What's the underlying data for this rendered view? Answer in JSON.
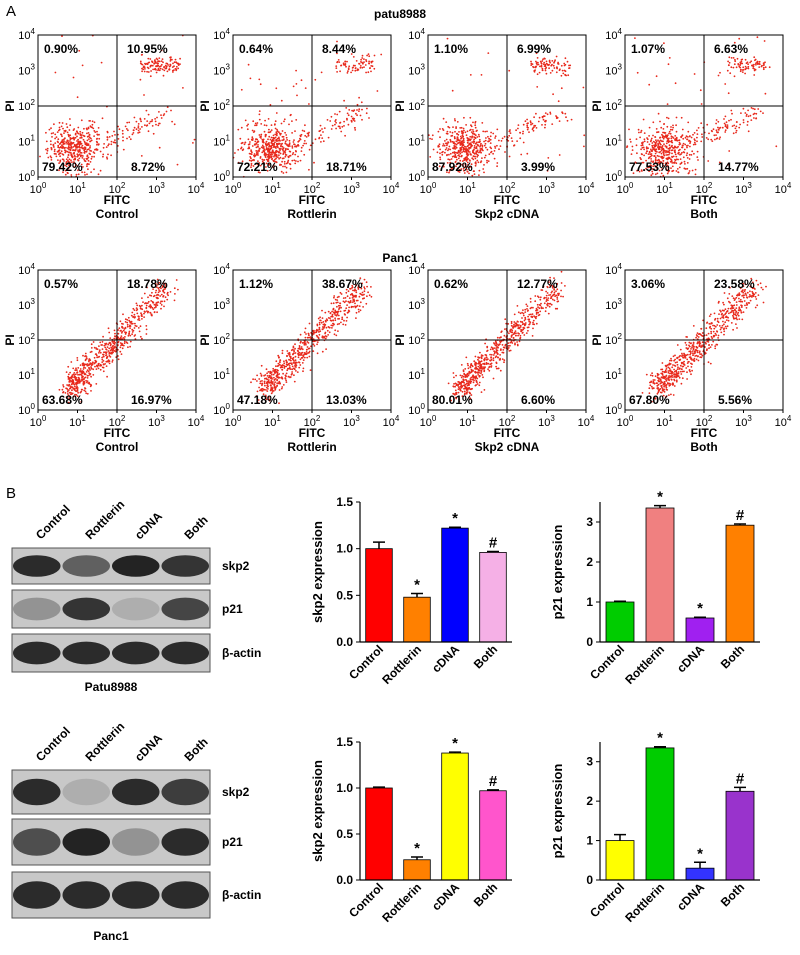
{
  "panel_labels": [
    "A",
    "B"
  ],
  "flow": {
    "x_label": "FITC",
    "y_label": "PI",
    "tick_base": "10",
    "tick_exponents": [
      "0",
      "1",
      "2",
      "3",
      "4"
    ],
    "rows": [
      {
        "title": "patu8988",
        "plots": [
          {
            "name": "Control",
            "quadrants": {
              "upper_left": "0.90%",
              "upper_right": "10.95%",
              "lower_left": "79.42%",
              "lower_right": "8.72%"
            }
          },
          {
            "name": "Rottlerin",
            "quadrants": {
              "upper_left": "0.64%",
              "upper_right": "8.44%",
              "lower_left": "72.21%",
              "lower_right": "18.71%"
            }
          },
          {
            "name": "Skp2 cDNA",
            "quadrants": {
              "upper_left": "1.10%",
              "upper_right": "6.99%",
              "lower_left": "87.92%",
              "lower_right": "3.99%"
            }
          },
          {
            "name": "Both",
            "quadrants": {
              "upper_left": "1.07%",
              "upper_right": "6.63%",
              "lower_left": "77.53%",
              "lower_right": "14.77%"
            }
          }
        ]
      },
      {
        "title": "Panc1",
        "plots": [
          {
            "name": "Control",
            "quadrants": {
              "upper_left": "0.57%",
              "upper_right": "18.78%",
              "lower_left": "63.68%",
              "lower_right": "16.97%"
            }
          },
          {
            "name": "Rottlerin",
            "quadrants": {
              "upper_left": "1.12%",
              "upper_right": "38.67%",
              "lower_left": "47.18%",
              "lower_right": "13.03%"
            }
          },
          {
            "name": "Skp2 cDNA",
            "quadrants": {
              "upper_left": "0.62%",
              "upper_right": "12.77%",
              "lower_left": "80.01%",
              "lower_right": "6.60%"
            }
          },
          {
            "name": "Both",
            "quadrants": {
              "upper_left": "3.06%",
              "upper_right": "23.58%",
              "lower_left": "67.80%",
              "lower_right": "5.56%"
            }
          }
        ]
      }
    ]
  },
  "blots": [
    {
      "cell_line": "Patu8988",
      "lanes": [
        "Control",
        "Rottlerin",
        "cDNA",
        "Both"
      ],
      "bands": [
        "skp2",
        "p21",
        "β-actin"
      ]
    },
    {
      "cell_line": "Panc1",
      "lanes": [
        "Control",
        "Rottlerin",
        "cDNA",
        "Both"
      ],
      "bands": [
        "skp2",
        "p21",
        "β-actin"
      ]
    }
  ],
  "chart_data": [
    {
      "type": "bar",
      "y_label": "skp2 expression",
      "categories": [
        "Control",
        "Rottlerin",
        "cDNA",
        "Both"
      ],
      "values": [
        1.0,
        0.48,
        1.22,
        0.96
      ],
      "errors": [
        0.07,
        0.04,
        0.01,
        0.01
      ],
      "colors": [
        "#ff0000",
        "#ff8000",
        "#0000ff",
        "#f5b0e6"
      ],
      "markers": [
        null,
        "*",
        "*",
        "#"
      ],
      "ylim": [
        0,
        1.5
      ],
      "yticks": [
        {
          "value": 0,
          "label": "0.0"
        },
        0.5,
        {
          "value": 1,
          "label": "1.0"
        },
        1.5
      ]
    },
    {
      "type": "bar",
      "y_label": "p21 expression",
      "categories": [
        "Control",
        "Rottlerin",
        "cDNA",
        "Both"
      ],
      "values": [
        1.0,
        3.35,
        0.6,
        2.92
      ],
      "errors": [
        0.02,
        0.06,
        0.02,
        0.03
      ],
      "colors": [
        "#00cc00",
        "#f08080",
        "#a020f0",
        "#ff8000"
      ],
      "markers": [
        null,
        "*",
        "*",
        "#"
      ],
      "ylim": [
        0,
        3.5
      ],
      "yticks": [
        0,
        1,
        2,
        3
      ]
    },
    {
      "type": "bar",
      "y_label": "skp2 expression",
      "categories": [
        "Control",
        "Rottlerin",
        "cDNA",
        "Both"
      ],
      "values": [
        1.0,
        0.22,
        1.38,
        0.97
      ],
      "errors": [
        0.01,
        0.03,
        0.01,
        0.01
      ],
      "colors": [
        "#ff0000",
        "#ff8000",
        "#ffff00",
        "#ff55cc"
      ],
      "markers": [
        null,
        "*",
        "*",
        "#"
      ],
      "ylim": [
        0,
        1.5
      ],
      "yticks": [
        {
          "value": 0,
          "label": "0.0"
        },
        0.5,
        {
          "value": 1,
          "label": "1.0"
        },
        1.5
      ]
    },
    {
      "type": "bar",
      "y_label": "p21 expression",
      "categories": [
        "Control",
        "Rottlerin",
        "cDNA",
        "Both"
      ],
      "values": [
        1.0,
        3.35,
        0.3,
        2.25
      ],
      "errors": [
        0.15,
        0.03,
        0.15,
        0.1
      ],
      "colors": [
        "#ffff00",
        "#00cc00",
        "#3333ff",
        "#9933cc"
      ],
      "markers": [
        null,
        "*",
        "*",
        "#"
      ],
      "ylim": [
        0,
        3.5
      ],
      "yticks": [
        0,
        1,
        2,
        3
      ]
    }
  ]
}
